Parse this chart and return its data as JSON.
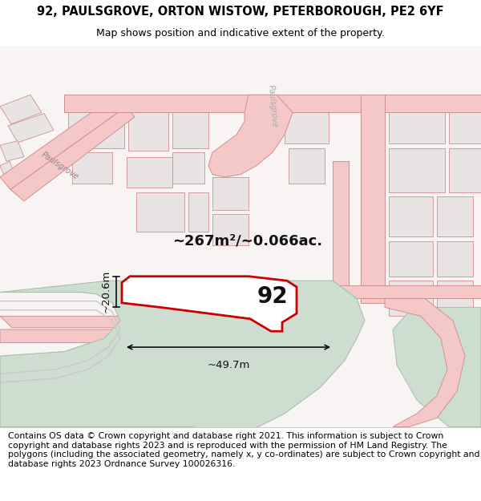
{
  "title": "92, PAULSGROVE, ORTON WISTOW, PETERBOROUGH, PE2 6YF",
  "subtitle": "Map shows position and indicative extent of the property.",
  "area_text": "~267m²/~0.066ac.",
  "label_92": "92",
  "dim_width": "~49.7m",
  "dim_height": "~20.6m",
  "footer_text": "Contains OS data © Crown copyright and database right 2021. This information is subject to Crown copyright and database rights 2023 and is reproduced with the permission of HM Land Registry. The polygons (including the associated geometry, namely x, y co-ordinates) are subject to Crown copyright and database rights 2023 Ordnance Survey 100026316.",
  "map_bg": "#f8f4f4",
  "road_fill": "#f5c8c8",
  "road_edge": "#d09090",
  "block_fill": "#e8e4e4",
  "block_edge": "#d09090",
  "green_fill": "#cdddd0",
  "green_edge": "#a8c0a8",
  "grey_road_fill": "#e0dede",
  "grey_road_edge": "#c0bcbc",
  "plot_fill": "#ffffff",
  "plot_edge": "#cc0000",
  "title_fs": 10.5,
  "subtitle_fs": 9,
  "area_fs": 13,
  "label_fs": 20,
  "dim_fs": 9.5,
  "footer_fs": 7.8,
  "paulsgrove_label_fs": 7
}
